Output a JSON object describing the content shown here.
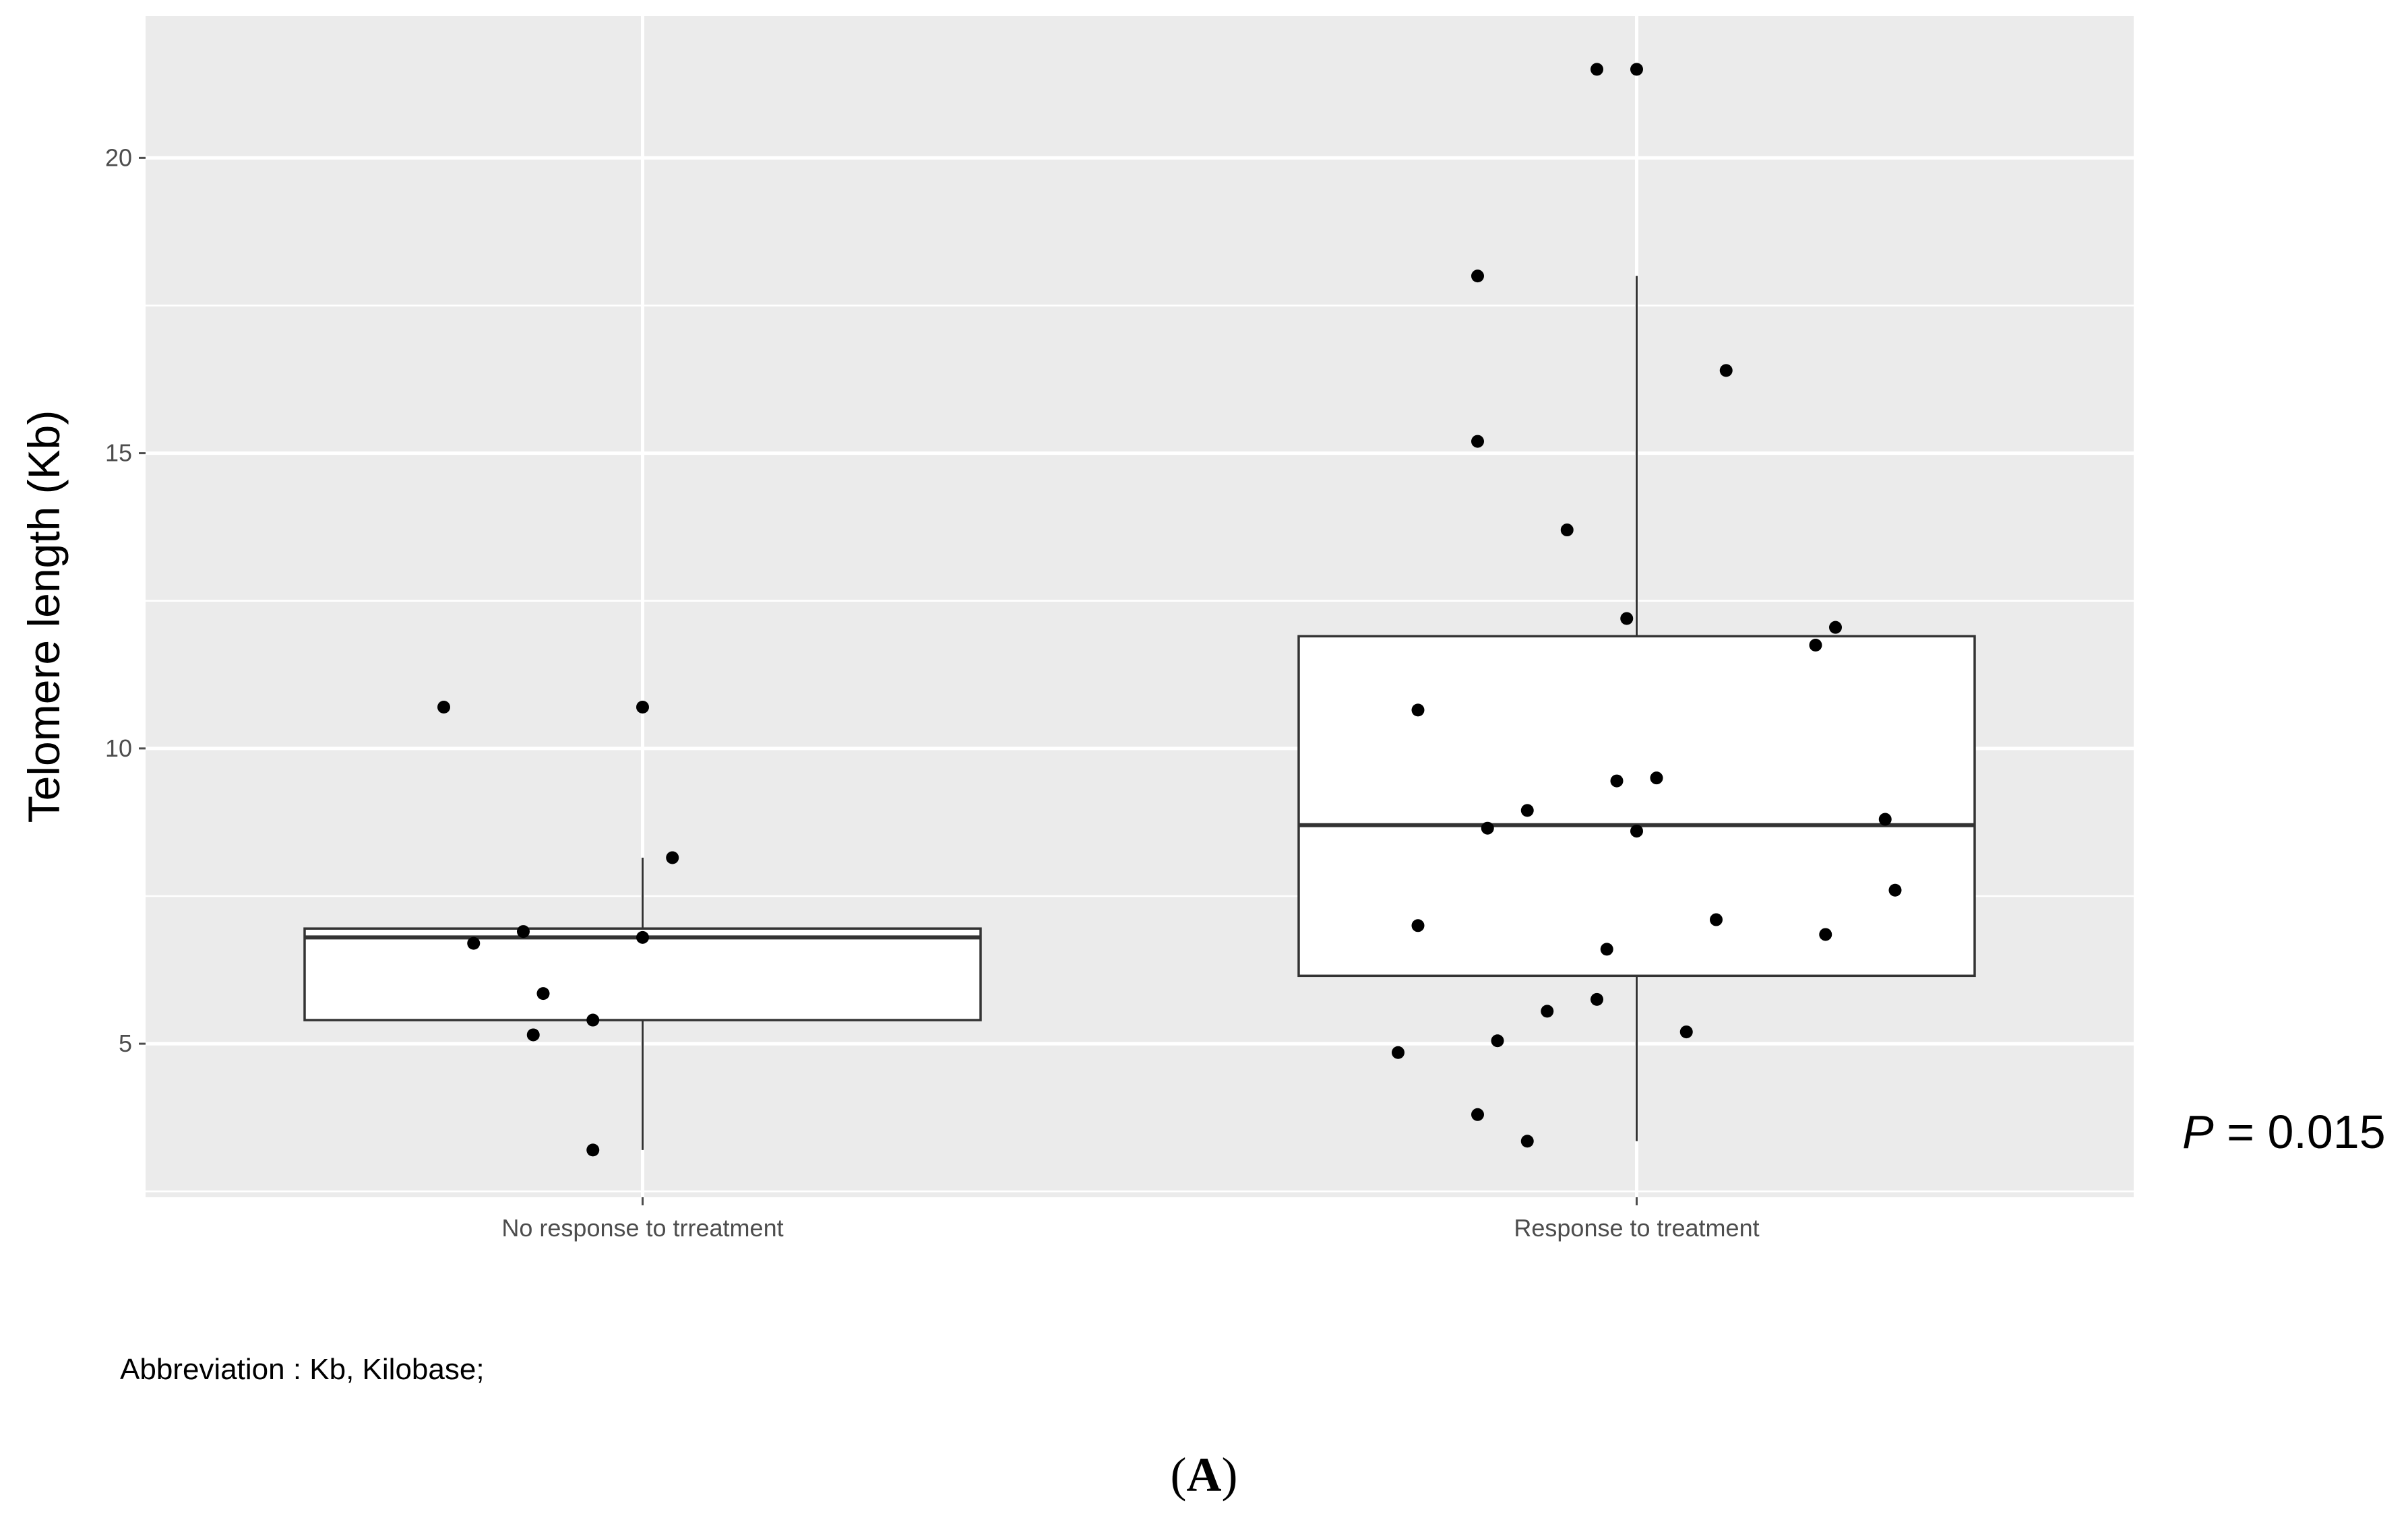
{
  "chart_data": {
    "type": "box",
    "ylabel": "Telomere length (Kb)",
    "xlabel": "",
    "ylim": [
      2.4,
      22.4
    ],
    "yticks": [
      5,
      10,
      15,
      20
    ],
    "grid": true,
    "categories": [
      "No response to trreatment",
      "Response to treatment"
    ],
    "boxes": [
      {
        "category": "No response to trreatment",
        "q1": 5.4,
        "median": 6.8,
        "q3": 6.95,
        "whisker_low": 3.2,
        "whisker_high": 8.15
      },
      {
        "category": "Response to treatment",
        "q1": 6.15,
        "median": 8.7,
        "q3": 11.9,
        "whisker_low": 3.35,
        "whisker_high": 18.0
      }
    ],
    "points": [
      {
        "group": 0,
        "jitter": -0.2,
        "y": 10.7
      },
      {
        "group": 0,
        "jitter": 0.0,
        "y": 10.7
      },
      {
        "group": 0,
        "jitter": 0.03,
        "y": 8.15
      },
      {
        "group": 0,
        "jitter": -0.12,
        "y": 6.9
      },
      {
        "group": 0,
        "jitter": -0.17,
        "y": 6.7
      },
      {
        "group": 0,
        "jitter": 0.0,
        "y": 6.8
      },
      {
        "group": 0,
        "jitter": -0.1,
        "y": 5.85
      },
      {
        "group": 0,
        "jitter": -0.11,
        "y": 5.15
      },
      {
        "group": 0,
        "jitter": -0.05,
        "y": 5.4
      },
      {
        "group": 0,
        "jitter": -0.05,
        "y": 3.2
      },
      {
        "group": 1,
        "jitter": -0.04,
        "y": 21.5
      },
      {
        "group": 1,
        "jitter": 0.0,
        "y": 21.5
      },
      {
        "group": 1,
        "jitter": -0.16,
        "y": 18.0
      },
      {
        "group": 1,
        "jitter": 0.09,
        "y": 16.4
      },
      {
        "group": 1,
        "jitter": -0.16,
        "y": 15.2
      },
      {
        "group": 1,
        "jitter": -0.07,
        "y": 13.7
      },
      {
        "group": 1,
        "jitter": -0.01,
        "y": 12.2
      },
      {
        "group": 1,
        "jitter": 0.2,
        "y": 12.05
      },
      {
        "group": 1,
        "jitter": 0.18,
        "y": 11.75
      },
      {
        "group": 1,
        "jitter": -0.22,
        "y": 10.65
      },
      {
        "group": 1,
        "jitter": -0.02,
        "y": 9.45
      },
      {
        "group": 1,
        "jitter": 0.02,
        "y": 9.5
      },
      {
        "group": 1,
        "jitter": -0.11,
        "y": 8.95
      },
      {
        "group": 1,
        "jitter": -0.15,
        "y": 8.65
      },
      {
        "group": 1,
        "jitter": 0.0,
        "y": 8.6
      },
      {
        "group": 1,
        "jitter": 0.25,
        "y": 8.8
      },
      {
        "group": 1,
        "jitter": 0.26,
        "y": 7.6
      },
      {
        "group": 1,
        "jitter": -0.22,
        "y": 7.0
      },
      {
        "group": 1,
        "jitter": 0.08,
        "y": 7.1
      },
      {
        "group": 1,
        "jitter": 0.19,
        "y": 6.85
      },
      {
        "group": 1,
        "jitter": -0.03,
        "y": 6.6
      },
      {
        "group": 1,
        "jitter": -0.04,
        "y": 5.75
      },
      {
        "group": 1,
        "jitter": -0.09,
        "y": 5.55
      },
      {
        "group": 1,
        "jitter": 0.05,
        "y": 5.2
      },
      {
        "group": 1,
        "jitter": -0.14,
        "y": 5.05
      },
      {
        "group": 1,
        "jitter": -0.24,
        "y": 4.85
      },
      {
        "group": 1,
        "jitter": -0.16,
        "y": 3.8
      },
      {
        "group": 1,
        "jitter": -0.11,
        "y": 3.35
      }
    ]
  },
  "annotations": {
    "p_label": "P",
    "p_rest": " = 0.015",
    "abbreviation": "Abbreviation : Kb, Kilobase;",
    "panel_open": "(",
    "panel_letter": "A",
    "panel_close": ")"
  },
  "colors": {
    "panel_bg": "#ebebeb",
    "grid": "#ffffff",
    "box_fill": "#ffffff",
    "box_stroke": "#333333",
    "point": "#000000"
  }
}
